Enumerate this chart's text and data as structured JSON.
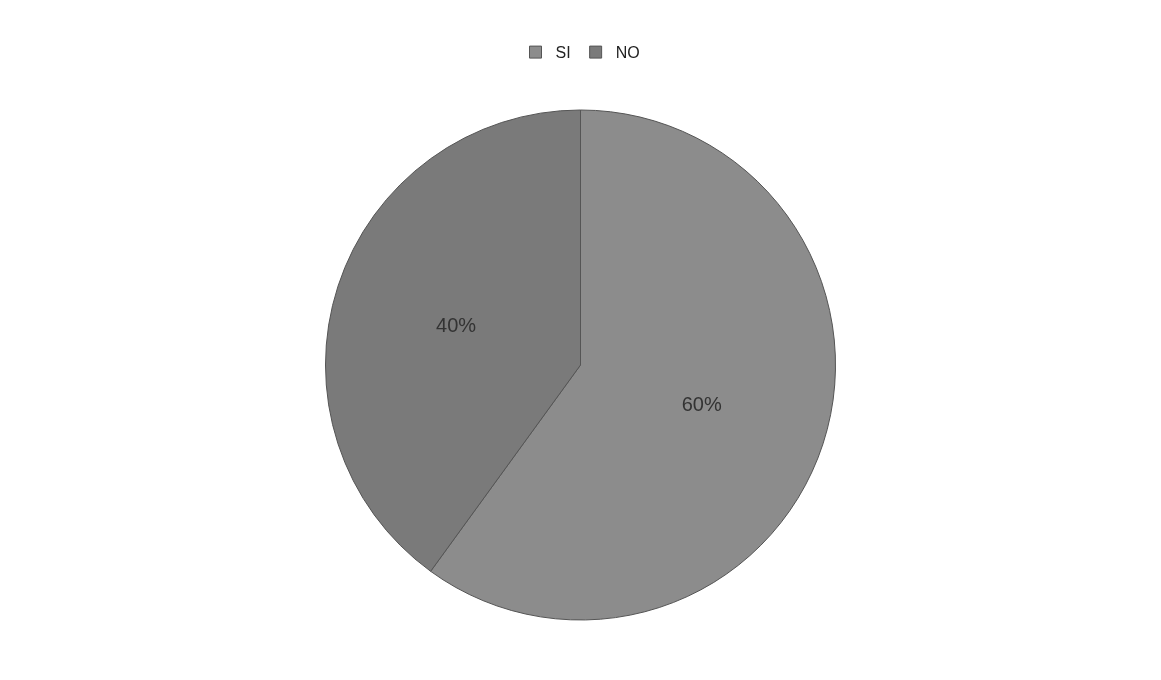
{
  "chart_data": {
    "type": "pie",
    "categories": [
      "SI",
      "NO"
    ],
    "values": [
      60,
      40
    ],
    "colors": [
      "#8c8c8c",
      "#7a7a7a"
    ],
    "value_labels": [
      "60%",
      "40%"
    ],
    "legend": "top"
  }
}
